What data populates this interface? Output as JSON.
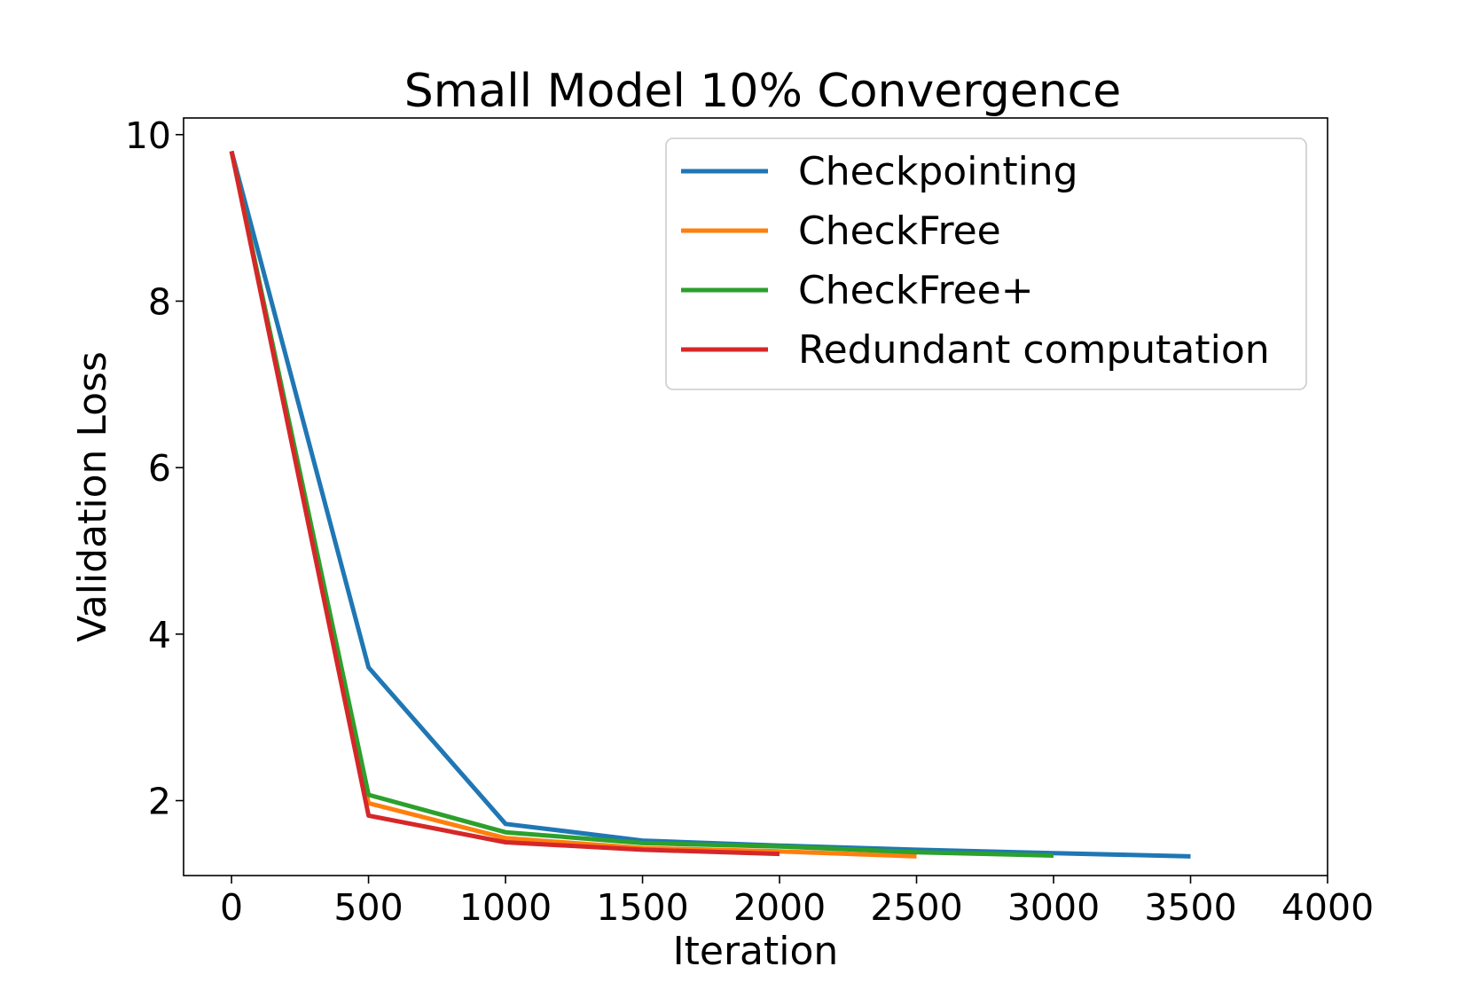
{
  "chart_data": {
    "type": "line",
    "title": "Small Model 10% Convergence",
    "xlabel": "Iteration",
    "ylabel": "Validation Loss",
    "xlim": [
      -175,
      4000
    ],
    "ylim": [
      1.1,
      10.2
    ],
    "xticks": [
      0,
      500,
      1000,
      1500,
      2000,
      2500,
      3000,
      3500,
      4000
    ],
    "xtick_labels": [
      "0",
      "500",
      "1000",
      "1500",
      "2000",
      "2500",
      "3000",
      "3500",
      "4000"
    ],
    "yticks": [
      2,
      4,
      6,
      8,
      10
    ],
    "ytick_labels": [
      "2",
      "4",
      "6",
      "8",
      "10"
    ],
    "grid": false,
    "legend_position": "upper right",
    "series": [
      {
        "name": "Checkpointing",
        "color": "#1f77b4",
        "x": [
          0,
          500,
          1000,
          1500,
          2000,
          2500,
          3000,
          3500
        ],
        "values": [
          9.8,
          3.6,
          1.72,
          1.52,
          1.46,
          1.41,
          1.37,
          1.33
        ]
      },
      {
        "name": "CheckFree",
        "color": "#ff7f0e",
        "x": [
          0,
          500,
          1000,
          1500,
          2000,
          2500
        ],
        "values": [
          9.8,
          1.97,
          1.55,
          1.43,
          1.39,
          1.33
        ]
      },
      {
        "name": "CheckFree+",
        "color": "#2ca02c",
        "x": [
          0,
          500,
          1000,
          1500,
          2000,
          2500,
          3000
        ],
        "values": [
          9.8,
          2.07,
          1.62,
          1.49,
          1.45,
          1.38,
          1.34
        ]
      },
      {
        "name": "Redundant computation",
        "color": "#d62728",
        "x": [
          0,
          500,
          1000,
          1500,
          2000
        ],
        "values": [
          9.8,
          1.82,
          1.5,
          1.41,
          1.36
        ]
      }
    ]
  }
}
